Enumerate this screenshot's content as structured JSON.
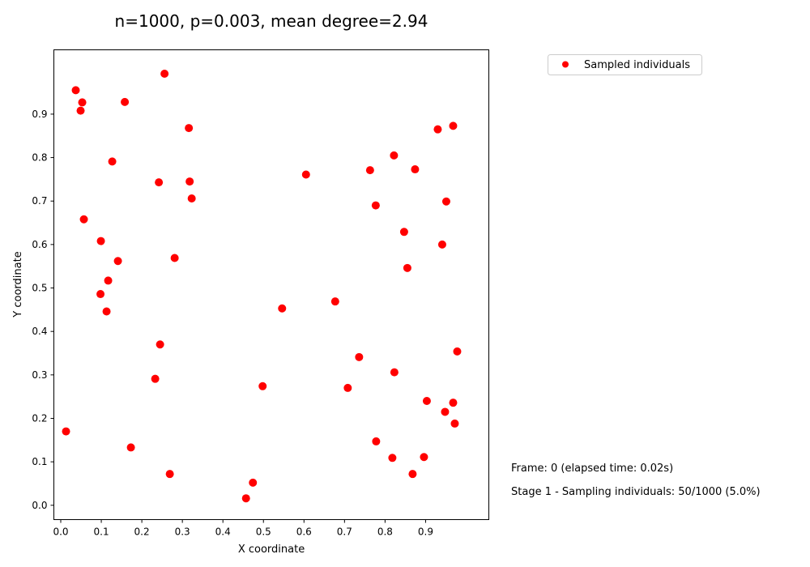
{
  "chart_data": {
    "type": "scatter",
    "title": "n=1000, p=0.003, mean degree=2.94",
    "xlabel": "X coordinate",
    "ylabel": "Y coordinate",
    "xlim": [
      -0.017,
      1.056
    ],
    "ylim": [
      -0.033,
      1.048
    ],
    "x_ticks": [
      "0.0",
      "0.1",
      "0.2",
      "0.3",
      "0.4",
      "0.5",
      "0.6",
      "0.7",
      "0.8",
      "0.9"
    ],
    "y_ticks": [
      "0.0",
      "0.1",
      "0.2",
      "0.3",
      "0.4",
      "0.5",
      "0.6",
      "0.7",
      "0.8",
      "0.9"
    ],
    "grid": false,
    "legend": {
      "position": "outside-top-right",
      "entries": [
        "Sampled individuals"
      ]
    },
    "series": [
      {
        "name": "Sampled individuals",
        "color": "#ff0000",
        "marker": "circle",
        "points": [
          [
            0.256,
            0.993
          ],
          [
            0.037,
            0.955
          ],
          [
            0.053,
            0.927
          ],
          [
            0.158,
            0.928
          ],
          [
            0.049,
            0.908
          ],
          [
            0.316,
            0.868
          ],
          [
            0.127,
            0.791
          ],
          [
            0.242,
            0.743
          ],
          [
            0.318,
            0.745
          ],
          [
            0.323,
            0.706
          ],
          [
            0.057,
            0.658
          ],
          [
            0.099,
            0.608
          ],
          [
            0.141,
            0.562
          ],
          [
            0.281,
            0.569
          ],
          [
            0.117,
            0.517
          ],
          [
            0.098,
            0.486
          ],
          [
            0.113,
            0.446
          ],
          [
            0.245,
            0.37
          ],
          [
            0.233,
            0.291
          ],
          [
            0.013,
            0.17
          ],
          [
            0.173,
            0.133
          ],
          [
            0.269,
            0.072
          ],
          [
            0.474,
            0.052
          ],
          [
            0.457,
            0.016
          ],
          [
            0.498,
            0.274
          ],
          [
            0.546,
            0.453
          ],
          [
            0.605,
            0.761
          ],
          [
            0.677,
            0.469
          ],
          [
            0.708,
            0.27
          ],
          [
            0.736,
            0.341
          ],
          [
            0.763,
            0.771
          ],
          [
            0.777,
            0.69
          ],
          [
            0.822,
            0.805
          ],
          [
            0.874,
            0.773
          ],
          [
            0.847,
            0.629
          ],
          [
            0.855,
            0.546
          ],
          [
            0.93,
            0.865
          ],
          [
            0.968,
            0.873
          ],
          [
            0.951,
            0.699
          ],
          [
            0.941,
            0.6
          ],
          [
            0.978,
            0.354
          ],
          [
            0.823,
            0.306
          ],
          [
            0.903,
            0.24
          ],
          [
            0.968,
            0.236
          ],
          [
            0.948,
            0.215
          ],
          [
            0.972,
            0.188
          ],
          [
            0.778,
            0.147
          ],
          [
            0.818,
            0.109
          ],
          [
            0.896,
            0.111
          ],
          [
            0.868,
            0.072
          ]
        ]
      }
    ]
  },
  "info": {
    "frame_text": "Frame: 0 (elapsed time: 0.02s)",
    "stage_text": "Stage 1 - Sampling individuals: 50/1000 (5.0%)"
  }
}
